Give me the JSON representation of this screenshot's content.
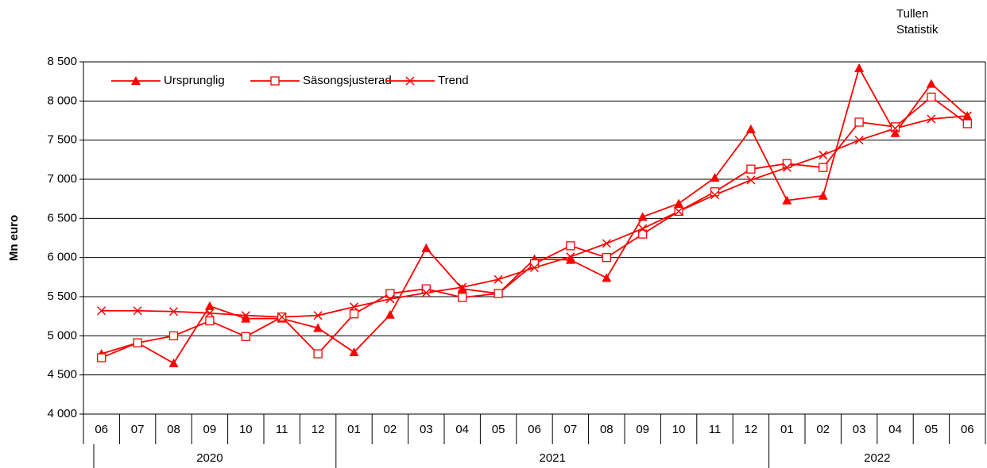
{
  "chart_data": {
    "type": "line",
    "ylabel": "Mn euro",
    "source": [
      "Tullen",
      "Statistik"
    ],
    "groups": [
      {
        "label": "2020",
        "categories": [
          "06",
          "07",
          "08",
          "09",
          "10",
          "11",
          "12"
        ]
      },
      {
        "label": "2021",
        "categories": [
          "01",
          "02",
          "03",
          "04",
          "05",
          "06",
          "07",
          "08",
          "09",
          "10",
          "11",
          "12"
        ]
      },
      {
        "label": "2022",
        "categories": [
          "01",
          "02",
          "03",
          "04",
          "05",
          "06"
        ]
      }
    ],
    "ylim": [
      4000,
      8500
    ],
    "yticks": [
      {
        "value": 4000,
        "label": "4 000"
      },
      {
        "value": 4500,
        "label": "4 500"
      },
      {
        "value": 5000,
        "label": "5 000"
      },
      {
        "value": 5500,
        "label": "5 500"
      },
      {
        "value": 6000,
        "label": "6 000"
      },
      {
        "value": 6500,
        "label": "6 500"
      },
      {
        "value": 7000,
        "label": "7 000"
      },
      {
        "value": 7500,
        "label": "7 500"
      },
      {
        "value": 8000,
        "label": "8 000"
      },
      {
        "value": 8500,
        "label": "8 500"
      }
    ],
    "grid": true,
    "legend": "upper left",
    "series": [
      {
        "name": "Ursprunglig",
        "color": "#ff0000",
        "marker": "triangle",
        "values": [
          4770,
          4910,
          4650,
          5380,
          5220,
          5220,
          5100,
          4790,
          5270,
          6120,
          5600,
          5540,
          5980,
          5970,
          5740,
          6520,
          6690,
          7020,
          7640,
          6730,
          6790,
          8420,
          7590,
          8220,
          7810
        ]
      },
      {
        "name": "Säsongsjusterad",
        "color": "#ff0000",
        "marker": "square",
        "values": [
          4720,
          4910,
          5000,
          5190,
          4990,
          5240,
          4770,
          5280,
          5540,
          5600,
          5490,
          5540,
          5920,
          6150,
          6000,
          6300,
          6590,
          6840,
          7130,
          7200,
          7150,
          7730,
          7670,
          8050,
          7710
        ]
      },
      {
        "name": "Trend",
        "color": "#ff0000",
        "marker": "x",
        "values": [
          5320,
          5320,
          5310,
          5290,
          5260,
          5240,
          5260,
          5370,
          5470,
          5550,
          5620,
          5720,
          5870,
          6010,
          6180,
          6370,
          6590,
          6800,
          6990,
          7150,
          7310,
          7500,
          7650,
          7770,
          7810
        ]
      }
    ]
  }
}
